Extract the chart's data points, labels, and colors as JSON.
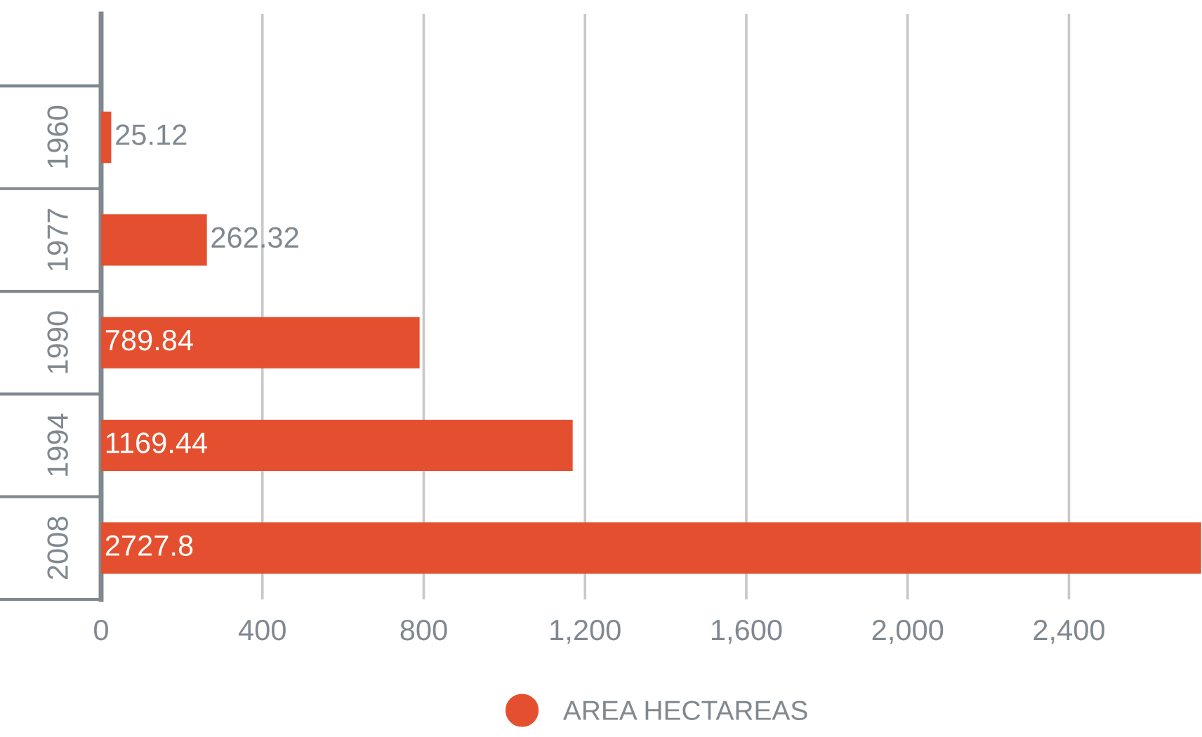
{
  "chart_data": {
    "type": "bar",
    "orientation": "horizontal",
    "categories": [
      "1960",
      "1977",
      "1990",
      "1994",
      "2008"
    ],
    "series": [
      {
        "name": "AREA HECTAREAS",
        "color": "#e4502f",
        "values": [
          25.12,
          262.32,
          789.84,
          1169.44,
          2727.8
        ]
      }
    ],
    "data_labels": true,
    "xlim": [
      0,
      2730
    ],
    "xticks": [
      0,
      400,
      {
        "value": 800,
        "label": "800"
      },
      {
        "value": 1200,
        "label": "1,200"
      },
      {
        "value": 1600,
        "label": "1,600"
      },
      {
        "value": 2000,
        "label": "2,000"
      },
      {
        "value": 2400,
        "label": "2,400"
      }
    ],
    "grid": "x",
    "legend": "bottom",
    "marker": "circle"
  }
}
